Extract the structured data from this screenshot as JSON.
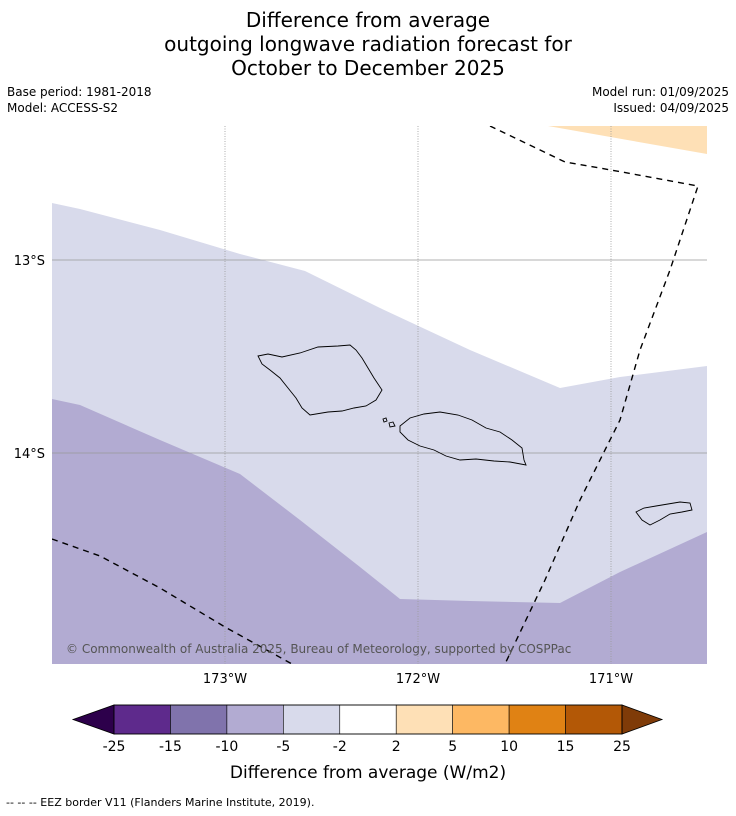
{
  "title": {
    "line1": "Difference from average",
    "line2": "outgoing longwave radiation forecast for",
    "line3": "October to December 2025"
  },
  "meta": {
    "base_period": "Base period: 1981-2018",
    "model": "Model: ACCESS-S2",
    "model_run": "Model run: 01/09/2025",
    "issued": "Issued: 04/09/2025"
  },
  "map": {
    "lat_labels": [
      "13°S",
      "14°S"
    ],
    "lon_labels": [
      "173°W",
      "172°W",
      "171°W"
    ],
    "copyright": "© Commonwealth of Australia 2025, Bureau of Meteorology, supported by COSPPac"
  },
  "colorbar": {
    "ticks": [
      "-25",
      "-15",
      "-10",
      "-5",
      "-2",
      "2",
      "5",
      "10",
      "15",
      "25"
    ],
    "label": "Difference from average (W/m2)",
    "colors": [
      "#2d004b",
      "#5e2a8c",
      "#8073ac",
      "#b2abd2",
      "#d8daeb",
      "#ffffff",
      "#fee0b6",
      "#fdb863",
      "#e08214",
      "#b35806",
      "#7f3b08"
    ]
  },
  "footnote": "--  --  -- EEZ border V11 (Flanders Marine Institute, 2019)."
}
